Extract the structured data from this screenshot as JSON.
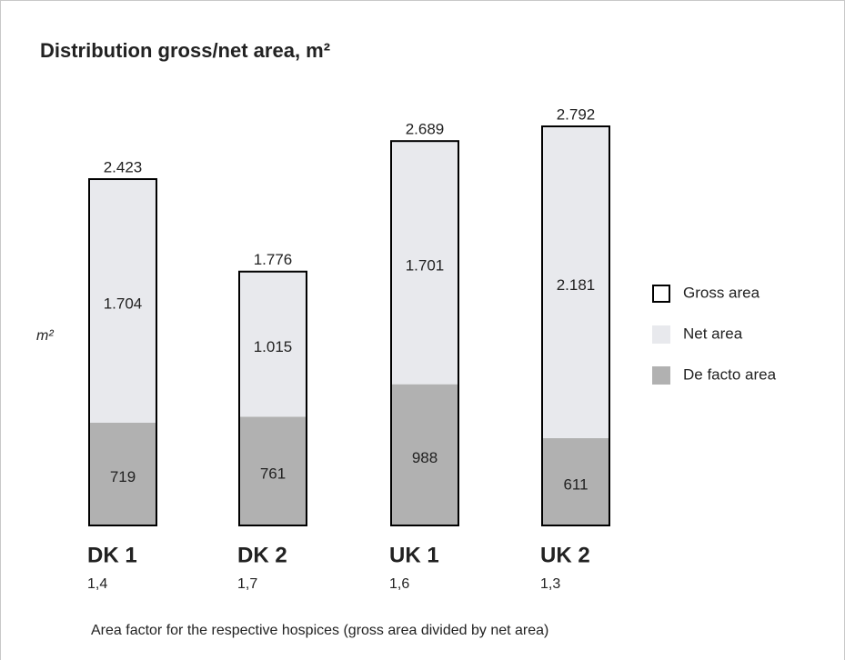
{
  "chart_data": {
    "type": "stacked_bar",
    "title": "Distribution gross/net area, m²",
    "y_label": "m²",
    "categories": [
      "DK 1",
      "DK 2",
      "UK 1",
      "UK 2"
    ],
    "series": [
      {
        "name": "Gross area",
        "color": "#000000",
        "outline": true,
        "values": [
          2423,
          1776,
          2689,
          2792
        ],
        "value_labels": [
          "2.423",
          "1.776",
          "2.689",
          "2.792"
        ]
      },
      {
        "name": "Net area",
        "color": "#e8e9ed",
        "values": [
          1704,
          1015,
          1701,
          2181
        ],
        "value_labels": [
          "1.704",
          "1.015",
          "1.701",
          "2.181"
        ]
      },
      {
        "name": "De facto area",
        "color": "#b1b1b1",
        "values": [
          719,
          761,
          988,
          611
        ],
        "value_labels": [
          "719",
          "761",
          "988",
          "611"
        ]
      }
    ],
    "area_factors": {
      "values": [
        1.4,
        1.7,
        1.6,
        1.3
      ],
      "value_labels": [
        "1,4",
        "1,7",
        "1,6",
        "1,3"
      ]
    },
    "footnote": "Area factor for the respective hospices (gross area divided by net area)"
  }
}
